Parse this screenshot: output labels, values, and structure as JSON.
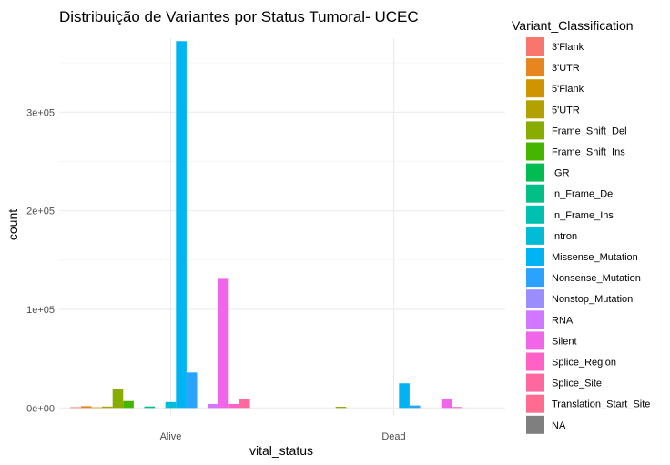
{
  "chart_data": {
    "type": "bar",
    "title": "Distribuição de Variantes por Status Tumoral- UCEC",
    "xlabel": "vital_status",
    "ylabel": "count",
    "categories": [
      "Alive",
      "Dead"
    ],
    "ylim": [
      -8000,
      375000
    ],
    "y_ticks": [
      0,
      100000,
      200000,
      300000
    ],
    "y_tick_labels": [
      "0e+00",
      "1e+05",
      "2e+05",
      "3e+05"
    ],
    "grid": true,
    "legend_position": "right",
    "legend_title": "Variant_Classification",
    "series": [
      {
        "name": "3'Flank",
        "color": "#F8766D",
        "values": [
          800,
          0
        ]
      },
      {
        "name": "3'UTR",
        "color": "#E7851E",
        "values": [
          1800,
          0
        ]
      },
      {
        "name": "5'Flank",
        "color": "#D09400",
        "values": [
          700,
          0
        ]
      },
      {
        "name": "5'UTR",
        "color": "#B2A100",
        "values": [
          1400,
          0
        ]
      },
      {
        "name": "Frame_Shift_Del",
        "color": "#89AC00",
        "values": [
          19000,
          1200
        ]
      },
      {
        "name": "Frame_Shift_Ins",
        "color": "#45B500",
        "values": [
          7000,
          0
        ]
      },
      {
        "name": "IGR",
        "color": "#00BC51",
        "values": [
          0,
          0
        ]
      },
      {
        "name": "In_Frame_Del",
        "color": "#00C087",
        "values": [
          1500,
          0
        ]
      },
      {
        "name": "In_Frame_Ins",
        "color": "#00C0B2",
        "values": [
          0,
          0
        ]
      },
      {
        "name": "Intron",
        "color": "#00BCD6",
        "values": [
          6000,
          0
        ]
      },
      {
        "name": "Missense_Mutation",
        "color": "#00B3F2",
        "values": [
          372000,
          25000
        ]
      },
      {
        "name": "Nonsense_Mutation",
        "color": "#29A3FF",
        "values": [
          36000,
          2500
        ]
      },
      {
        "name": "Nonstop_Mutation",
        "color": "#9C8DFF",
        "values": [
          0,
          0
        ]
      },
      {
        "name": "RNA",
        "color": "#D277FF",
        "values": [
          4000,
          0
        ]
      },
      {
        "name": "Silent",
        "color": "#F166E8",
        "values": [
          131000,
          9000
        ]
      },
      {
        "name": "Splice_Region",
        "color": "#FF61C7",
        "values": [
          4000,
          1000
        ]
      },
      {
        "name": "Splice_Site",
        "color": "#FF689E",
        "values": [
          9000,
          0
        ]
      },
      {
        "name": "Translation_Start_Site",
        "color": "#FF6C90",
        "values": [
          0,
          0
        ]
      },
      {
        "name": "NA",
        "color": "#7F7F7F",
        "values": [
          0,
          0
        ]
      }
    ]
  }
}
